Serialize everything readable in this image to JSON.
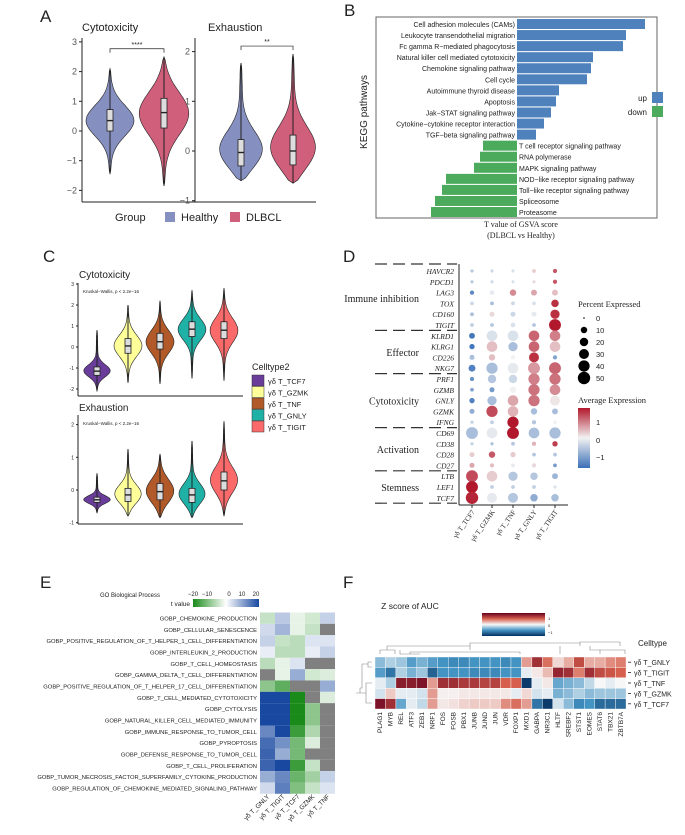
{
  "panels": {
    "a": "A",
    "b": "B",
    "c": "C",
    "d": "D",
    "e": "E",
    "f": "F"
  },
  "chart_data": [
    {
      "panel": "A",
      "type": "violin",
      "legend": {
        "title": "Group",
        "items": [
          "Healthy",
          "DLBCL"
        ],
        "colors": [
          "#8690c0",
          "#cf5f7a"
        ],
        "placement": "bottom"
      },
      "subplots": [
        {
          "title": "Cytotoxicity",
          "yticks": [
            "3",
            "2",
            "1",
            "0",
            "−1",
            "−2"
          ],
          "ylim": [
            -2,
            3
          ],
          "significance": "****",
          "groups": [
            {
              "name": "Healthy",
              "median": 0.35,
              "q1": 0.0,
              "q3": 0.72,
              "min": -1.45,
              "max": 2.1
            },
            {
              "name": "DLBCL",
              "median": 0.62,
              "q1": 0.1,
              "q3": 1.1,
              "min": -1.85,
              "max": 2.5
            }
          ]
        },
        {
          "title": "Exhaustion",
          "yticks": [
            "2",
            "1",
            "0",
            "−1"
          ],
          "ylim": [
            -1,
            2
          ],
          "significance": "**",
          "groups": [
            {
              "name": "Healthy",
              "median": -0.03,
              "q1": -0.3,
              "q3": 0.23,
              "min": -0.6,
              "max": 1.77
            },
            {
              "name": "DLBCL",
              "median": 0.0,
              "q1": -0.28,
              "q3": 0.32,
              "min": -0.65,
              "max": 1.95
            }
          ]
        }
      ]
    },
    {
      "panel": "B",
      "type": "bar",
      "orientation": "horizontal",
      "ylabel": "KEGG pathways",
      "xlabel_line1": "T value of GSVA score",
      "xlabel_line2": "(DLBCL vs Healthy)",
      "legend": {
        "items": [
          "up",
          "down"
        ],
        "colors": [
          "#4f81bd",
          "#4caa5c"
        ],
        "placement": "right"
      },
      "categories": [
        "Cell adhesion molecules (CAMs)",
        "Leukocyte transendothelial migration",
        "Fc gamma R−mediated phagocytosis",
        "Natural killer cell mediated cytotoxicity",
        "Chemokine signaling pathway",
        "Cell cycle",
        "Autoimmune thyroid disease",
        "Apoptosis",
        "Jak−STAT signaling pathway",
        "Cytokine−cytokine receptor interaction",
        "TGF−beta signaling pathway",
        "T cell receptor signaling pathway",
        "RNA polymerase",
        "MAPK signaling pathway",
        "NOD−like receptor signaling pathway",
        "Toll−like receptor signaling pathway",
        "Spliceosome",
        "Proteasome"
      ],
      "values": [
        12.8,
        10.9,
        10.6,
        7.6,
        7.4,
        7.0,
        4.2,
        3.9,
        3.4,
        2.7,
        1.9,
        -3.4,
        -3.7,
        -4.3,
        -7.1,
        -7.5,
        -8.2,
        -8.6
      ]
    },
    {
      "panel": "C",
      "type": "violin",
      "legend": {
        "title": "Celltype2",
        "items": [
          "γδ T_TCF7",
          "γδ T_GZMK",
          "γδ T_TNF",
          "γδ T_GNLY",
          "γδ T_TIGIT"
        ],
        "colors": [
          "#6a3d9a",
          "#ffff99",
          "#b15928",
          "#1fb1a5",
          "#fb6a6a"
        ],
        "placement": "right"
      },
      "subplots": [
        {
          "title": "Cytotoxicity",
          "annotation": "Kruskal−Wallis, p < 2.2e−16",
          "yticks": [
            "3",
            "2",
            "1",
            "0",
            "-1",
            "-2"
          ],
          "ylim": [
            -2,
            3
          ],
          "groups": [
            {
              "median": -1.15,
              "q1": -1.35,
              "q3": -0.95,
              "min": -2.1,
              "max": 0.8
            },
            {
              "median": 0.05,
              "q1": -0.3,
              "q3": 0.4,
              "min": -1.7,
              "max": 2.0
            },
            {
              "median": 0.25,
              "q1": -0.1,
              "q3": 0.65,
              "min": -1.75,
              "max": 2.2
            },
            {
              "median": 0.85,
              "q1": 0.5,
              "q3": 1.2,
              "min": -1.5,
              "max": 2.7
            },
            {
              "median": 0.8,
              "q1": 0.4,
              "q3": 1.2,
              "min": -1.6,
              "max": 2.8
            }
          ]
        },
        {
          "title": "Exhaustion",
          "annotation": "Kruskal−Wallis, p < 2.2e−16",
          "yticks": [
            "2",
            "1",
            "0",
            "-1"
          ],
          "ylim": [
            -1,
            2
          ],
          "groups": [
            {
              "median": -0.3,
              "q1": -0.38,
              "q3": -0.22,
              "min": -0.7,
              "max": 0.5
            },
            {
              "median": -0.15,
              "q1": -0.35,
              "q3": 0.05,
              "min": -0.8,
              "max": 1.25
            },
            {
              "median": -0.05,
              "q1": -0.3,
              "q3": 0.2,
              "min": -0.85,
              "max": 1.1
            },
            {
              "median": -0.15,
              "q1": -0.38,
              "q3": 0.05,
              "min": -0.85,
              "max": 1.5
            },
            {
              "median": 0.28,
              "q1": 0.0,
              "q3": 0.55,
              "min": -0.8,
              "max": 2.1
            }
          ]
        }
      ]
    },
    {
      "panel": "D",
      "type": "dotplot",
      "columns": [
        "γδ T_TCF7",
        "γδ T_GZMK",
        "γδ T_TNF",
        "γδ T_GNLY",
        "γδ T_TIGIT"
      ],
      "groups": [
        {
          "label": "Immune inhibition",
          "genes": [
            "HAVCR2",
            "PDCD1",
            "LAG3",
            "TOX",
            "CD160",
            "TIGIT"
          ]
        },
        {
          "label": "Effector",
          "genes": [
            "KLRD1",
            "KLRG1",
            "CD226",
            "NKG7"
          ]
        },
        {
          "label": "Cytotoxicity",
          "genes": [
            "PRF1",
            "GZMB",
            "GNLY",
            "GZMK",
            "IFNG"
          ]
        },
        {
          "label": "Activation",
          "genes": [
            "CD69",
            "CD38",
            "CD28",
            "CD27"
          ]
        },
        {
          "label": "Stemness",
          "genes": [
            "LTB",
            "LEF1",
            "TCF7"
          ]
        }
      ],
      "percent_expressed": [
        [
          1,
          1,
          1,
          2,
          3
        ],
        [
          1,
          1,
          1,
          1,
          3
        ],
        [
          3,
          4,
          10,
          8,
          8
        ],
        [
          2,
          2,
          2,
          2,
          15
        ],
        [
          2,
          5,
          5,
          5,
          25
        ],
        [
          2,
          2,
          4,
          2,
          45
        ],
        [
          8,
          35,
          35,
          35,
          35
        ],
        [
          6,
          35,
          25,
          35,
          35
        ],
        [
          5,
          10,
          3,
          30,
          3
        ],
        [
          12,
          40,
          35,
          45,
          45
        ],
        [
          3,
          20,
          20,
          40,
          40
        ],
        [
          2,
          5,
          10,
          40,
          35
        ],
        [
          6,
          25,
          35,
          40,
          30
        ],
        [
          5,
          40,
          35,
          10,
          8
        ],
        [
          1,
          2,
          40,
          3,
          2
        ],
        [
          45,
          35,
          45,
          35,
          40
        ],
        [
          1,
          1,
          2,
          3,
          6
        ],
        [
          5,
          10,
          6,
          2,
          2
        ],
        [
          5,
          3,
          2,
          3,
          2
        ],
        [
          45,
          35,
          25,
          15,
          8
        ],
        [
          45,
          2,
          2,
          2,
          1
        ],
        [
          50,
          30,
          30,
          15,
          15
        ]
      ],
      "average_expression": [
        [
          -0.5,
          -0.3,
          -0.2,
          0.3,
          1.2
        ],
        [
          -0.5,
          -0.3,
          -0.2,
          0.2,
          1.2
        ],
        [
          -1.2,
          -0.1,
          0.8,
          0.6,
          0.4
        ],
        [
          -0.3,
          -0.6,
          -0.3,
          -0.2,
          1.5
        ],
        [
          -0.6,
          0.2,
          -0.3,
          -0.1,
          1.5
        ],
        [
          -0.4,
          -0.5,
          -0.2,
          -0.5,
          1.7
        ],
        [
          -1.4,
          -0.2,
          -0.2,
          1.1,
          0.9
        ],
        [
          -1.4,
          0.4,
          -0.6,
          1.1,
          0.4
        ],
        [
          -0.6,
          0.4,
          0,
          1.5,
          -0.9
        ],
        [
          -1.3,
          -0.6,
          -0.1,
          0.7,
          1.1
        ],
        [
          -1.1,
          -0.5,
          -0.3,
          0.9,
          1.0
        ],
        [
          -0.9,
          -1.0,
          0,
          1.0,
          0.8
        ],
        [
          -1.3,
          -0.6,
          0.6,
          1.0,
          0.1
        ],
        [
          -0.8,
          1.3,
          0.5,
          -0.6,
          -0.6
        ],
        [
          -0.4,
          -0.4,
          1.8,
          -0.5,
          0
        ],
        [
          -0.6,
          -0.1,
          1.8,
          -0.6,
          -0.6
        ],
        [
          -0.4,
          -0.6,
          -0.5,
          0.5,
          1.4
        ],
        [
          0.3,
          1.2,
          0.3,
          -0.5,
          -0.5
        ],
        [
          0.6,
          0.4,
          -0.1,
          0.2,
          -1.0
        ],
        [
          1.3,
          0.3,
          -0.5,
          -0.5,
          -0.7
        ],
        [
          1.8,
          -0.4,
          -0.4,
          -0.4,
          -0.2
        ],
        [
          1.6,
          -0.1,
          -0.5,
          -0.8,
          -0.6
        ]
      ],
      "size_legend": {
        "title": "Percent Expressed",
        "values": [
          "0",
          "10",
          "20",
          "30",
          "40",
          "50"
        ]
      },
      "color_legend": {
        "title": "Average Expression",
        "ticks": [
          "1",
          "0",
          "−1"
        ],
        "colors": [
          "#3a6fb8",
          "#f2f2f2",
          "#b2182b"
        ]
      }
    },
    {
      "panel": "E",
      "type": "heatmap",
      "legend": {
        "title": "GO Biological Process",
        "subtitle": "t value",
        "ticks": [
          "−20",
          "−10",
          "0",
          "10",
          "20"
        ],
        "colors": [
          "#1a8a1a",
          "#ffffff",
          "#1848a0"
        ],
        "na_color": "#808080"
      },
      "columns": [
        "γδ T_GNLY",
        "γδ T_TIGIT",
        "γδ T_TCF7",
        "γδ T_GZMK",
        "γδ T_TNF"
      ],
      "rows": [
        "GOBP_CHEMOKINE_PRODUCTION",
        "GOBP_CELLULAR_SENESCENCE",
        "GOBP_POSITIVE_REGULATION_OF_T_HELPER_1_CELL_DIFFERENTIATION",
        "GOBP_INTERLEUKIN_2_PRODUCTION",
        "GOBP_T_CELL_HOMEOSTASIS",
        "GOBP_GAMMA_DELTA_T_CELL_DIFFERENTIATION",
        "GOBP_POSITIVE_REGULATION_OF_T_HELPER_17_CELL_DIFFERENTIATION",
        "GOBP_T_CELL_MEDIATED_CYTOTOXICITY",
        "GOBP_CYTOLYSIS",
        "GOBP_NATURAL_KILLER_CELL_MEDIATED_IMMUNITY",
        "GOBP_IMMUNE_RESPONSE_TO_TUMOR_CELL",
        "GOBP_PYROPTOSIS",
        "GOBP_DEFENSE_RESPONSE_TO_TUMOR_CELL",
        "GOBP_T_CELL_PROLIFERATION",
        "GOBP_TUMOR_NECROSIS_FACTOR_SUPERFAMILY_CYTOKINE_PRODUCTION",
        "GOBP_REGULATION_OF_CHEMOKINE_MEDIATED_SIGNALING_PATHWAY"
      ],
      "values": [
        [
          -5,
          6,
          -2,
          -4,
          5
        ],
        [
          4,
          8,
          -2,
          -5,
          null
        ],
        [
          5,
          -5,
          -6,
          3,
          3
        ],
        [
          2,
          -6,
          -6,
          2,
          5
        ],
        [
          -6,
          -2,
          3,
          null,
          null
        ],
        [
          null,
          -2,
          9,
          -4,
          -3
        ],
        [
          -10,
          -14,
          null,
          null,
          9
        ],
        [
          20,
          20,
          -20,
          null,
          -3
        ],
        [
          20,
          20,
          -20,
          -10,
          null
        ],
        [
          20,
          20,
          -20,
          -10,
          null
        ],
        [
          13,
          20,
          -17,
          -7,
          null
        ],
        [
          16,
          12,
          -12,
          -3,
          null
        ],
        [
          17,
          9,
          -12,
          null,
          null
        ],
        [
          17,
          20,
          -17,
          -5,
          null
        ],
        [
          9,
          13,
          -13,
          -8,
          5
        ],
        [
          4,
          14,
          -11,
          -5,
          3
        ]
      ]
    },
    {
      "panel": "F",
      "type": "heatmap",
      "title": "Z score of AUC",
      "legend": {
        "ticks": [
          "1",
          "0",
          "−1"
        ],
        "colors": [
          "#053061",
          "#4393c3",
          "#f7f7f7",
          "#d6604d",
          "#67001f"
        ]
      },
      "annotation_title": "Celltype",
      "rows": [
        "γδ T_GNLY",
        "γδ T_TIGIT",
        "γδ T_TNF",
        "γδ T_GZMK",
        "γδ T_TCF7"
      ],
      "columns": [
        "PLAG1",
        "MYB",
        "REL",
        "ATF3",
        "ZEB1",
        "NRF1",
        "FOS",
        "FOSB",
        "PBX1",
        "JUNB",
        "JUND",
        "JUN",
        "VDR",
        "FOXP1",
        "MXD1",
        "GABPA",
        "NR3C1",
        "HLTF",
        "SREBF2",
        "STST1",
        "EOMES",
        "STAT6",
        "TBX21",
        "ZBTB7A"
      ],
      "values": [
        [
          -0.6,
          -0.4,
          -0.5,
          -0.9,
          -0.7,
          -0.9,
          -1,
          -1.1,
          -1.1,
          -1,
          -1,
          -1,
          -1.1,
          -1,
          0.6,
          1.5,
          0.9,
          0.2,
          0.5,
          1.2,
          0.5,
          0.5,
          0.7,
          0.8
        ],
        [
          -0.9,
          -1.3,
          -0.4,
          -0.7,
          -0.5,
          -1.5,
          -1,
          -1,
          -1,
          -1.1,
          -1.1,
          -1.1,
          -1,
          -1,
          -0.1,
          0.1,
          0.4,
          1.6,
          1.5,
          0.8,
          1.5,
          1.2,
          1.1,
          1
        ],
        [
          -0.1,
          -0.4,
          1.7,
          1.7,
          1.8,
          0.6,
          1.5,
          1.5,
          1.4,
          1.4,
          1.3,
          1.3,
          1,
          1,
          -1.9,
          -0.1,
          0.1,
          -0.8,
          -0.7,
          -0.6,
          -0.3,
          0,
          -0.1,
          0
        ],
        [
          -0.2,
          0.3,
          -0.1,
          -0.1,
          -0.2,
          0.6,
          0.05,
          0.05,
          0.1,
          0.1,
          0.1,
          0.1,
          0.1,
          -0.1,
          0.2,
          -0.2,
          -0.1,
          -0.7,
          -0.6,
          -0.4,
          -0.6,
          -0.5,
          -0.5,
          -0.5
        ],
        [
          1.8,
          1.5,
          -0.8,
          -0.1,
          -0.3,
          0.6,
          0.1,
          0.15,
          0.25,
          0.3,
          0.3,
          0.3,
          0.7,
          0.9,
          0.6,
          -1.3,
          -1.9,
          -0.2,
          -0.6,
          -1.1,
          -1,
          -1.4,
          -1.4,
          -1.4
        ]
      ]
    }
  ]
}
